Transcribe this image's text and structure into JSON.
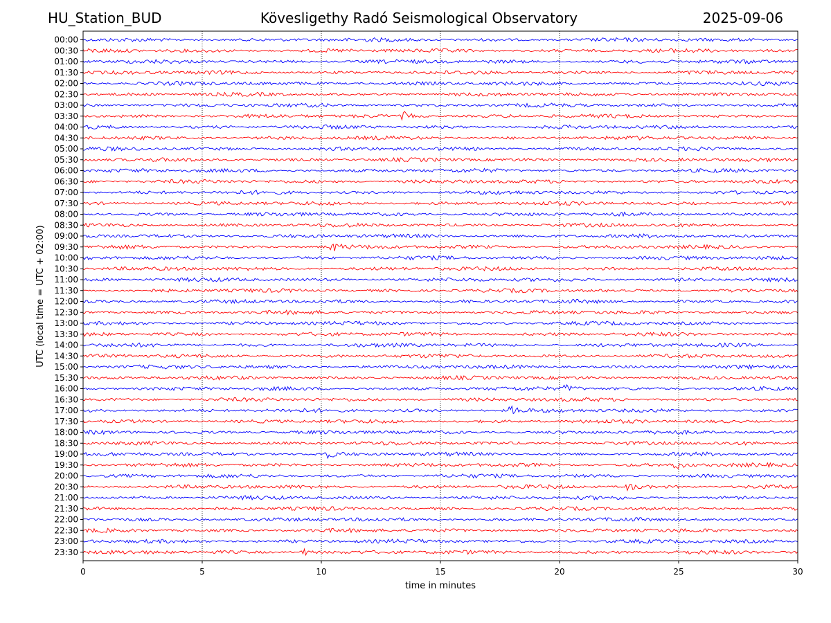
{
  "header": {
    "station": "HU_Station_BUD",
    "observatory": "Kövesligethy Radó Seismological Observatory",
    "date": "2025-09-06"
  },
  "chart_data": {
    "type": "line",
    "title": "Kövesligethy Radó Seismological Observatory",
    "xlabel": "time in minutes",
    "ylabel": "UTC (local time = UTC + 02:00)",
    "xlim": [
      0,
      30
    ],
    "x_ticks": [
      "0",
      "5",
      "10",
      "15",
      "20",
      "25",
      "30"
    ],
    "grid": "vertical dotted lines at x = 5, 10, 15, 20, 25",
    "trace_colors": [
      "#0000ff",
      "#ff0000"
    ],
    "rows": [
      "00:00",
      "00:30",
      "01:00",
      "01:30",
      "02:00",
      "02:30",
      "03:00",
      "03:30",
      "04:00",
      "04:30",
      "05:00",
      "05:30",
      "06:00",
      "06:30",
      "07:00",
      "07:30",
      "08:00",
      "08:30",
      "09:00",
      "09:30",
      "10:00",
      "10:30",
      "11:00",
      "11:30",
      "12:00",
      "12:30",
      "13:00",
      "13:30",
      "14:00",
      "14:30",
      "15:00",
      "15:30",
      "16:00",
      "16:30",
      "17:00",
      "17:30",
      "18:00",
      "18:30",
      "19:00",
      "19:30",
      "20:00",
      "20:30",
      "21:00",
      "21:30",
      "22:00",
      "22:30",
      "23:00",
      "23:30"
    ],
    "notable_events": [
      {
        "row": "03:30",
        "minute": 13.5
      },
      {
        "row": "09:30",
        "minute": 10.5
      },
      {
        "row": "16:00",
        "minute": 20.3
      },
      {
        "row": "17:00",
        "minute": 18.0
      },
      {
        "row": "19:00",
        "minute": 10.2
      },
      {
        "row": "19:30",
        "minute": 24.9
      },
      {
        "row": "20:30",
        "minute": 22.9
      },
      {
        "row": "23:30",
        "minute": 9.2
      }
    ]
  }
}
